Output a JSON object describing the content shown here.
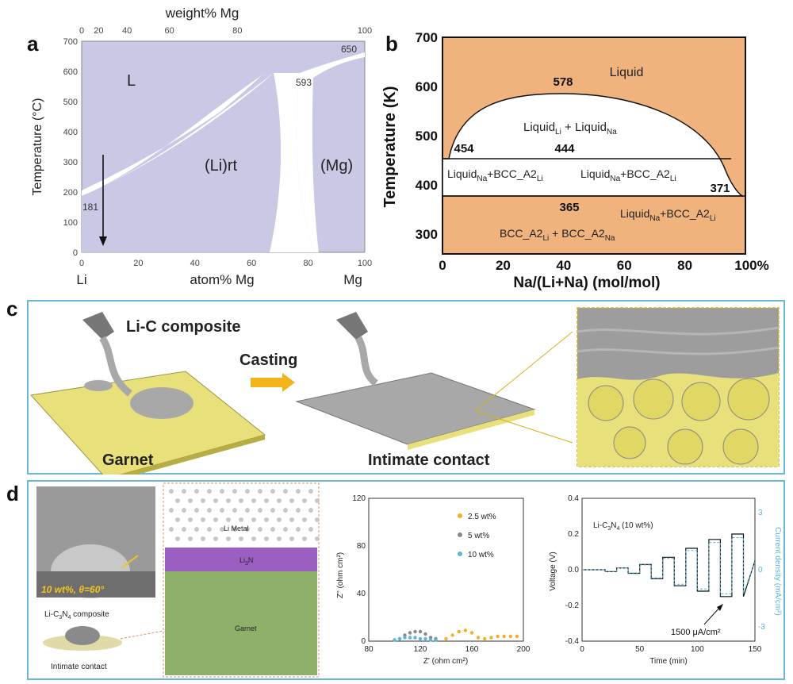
{
  "panel_a": {
    "label": "a",
    "top_axis_title": "weight% Mg",
    "top_ticks": [
      "0",
      "20",
      "40",
      "60",
      "80",
      "100"
    ],
    "y_title": "Temperature (°C)",
    "y_ticks": [
      "0",
      "100",
      "200",
      "300",
      "400",
      "500",
      "600",
      "700"
    ],
    "x_ticks": [
      "0",
      "20",
      "40",
      "60",
      "80",
      "100"
    ],
    "x_left": "Li",
    "x_title": "atom% Mg",
    "x_right": "Mg",
    "region_L": "L",
    "region_lirt": "(Li)rt",
    "region_mg": "(Mg)",
    "t_650": "650",
    "t_593": "593",
    "t_181": "181",
    "colors": {
      "liquid": "#c9c9e6",
      "solid": "#ffffff"
    }
  },
  "panel_b": {
    "label": "b",
    "y_title": "Temperature (K)",
    "y_ticks": [
      "700",
      "600",
      "500",
      "400",
      "300"
    ],
    "x_ticks": [
      "0",
      "20",
      "40",
      "60",
      "80",
      "100%"
    ],
    "x_title": "Na/(Li+Na) (mol/mol)",
    "liquid": "Liquid",
    "t_578": "578",
    "t_454": "454",
    "t_444": "444",
    "t_371": "371",
    "t_365": "365",
    "miscibility_main": "Liquid",
    "miscibility_sub1": "Li",
    "miscibility_plus": " + Liquid",
    "miscibility_sub2": "Na",
    "left_region_main": "Liquid",
    "left_region_sub1": "Na",
    "left_region_plus": "+BCC_A2",
    "left_region_sub2": "Li",
    "right_region_main": "Liquid",
    "right_region_sub1": "Na",
    "right_region_plus": "+BCC_A2",
    "right_region_sub2": "Li",
    "lower_right_main": "Liquid",
    "lower_right_sub1": "Na",
    "lower_right_plus": "+BCC_A2",
    "lower_right_sub2": "Li",
    "bottom_main": "BCC_A2",
    "bottom_sub1": "Li",
    "bottom_plus": " + BCC_A2",
    "bottom_sub2": "Na",
    "colors": {
      "fill": "#f0b37e",
      "white": "#ffffff"
    }
  },
  "panel_c": {
    "label": "c",
    "composite": "Li-C composite",
    "casting": "Casting",
    "garnet": "Garnet",
    "intimate": "Intimate contact",
    "colors": {
      "garnet": "#e8e07a",
      "metal": "#a9a9a9",
      "arrow": "#f2b31c",
      "frame": "#6bb8d6"
    }
  },
  "panel_d": {
    "label": "d",
    "drop_caption": "10 wt%, θ=60°",
    "composite_main": "Li-C",
    "composite_sub": "3",
    "composite_n": "N",
    "composite_sub2": "4",
    "composite_rest": " composite",
    "intimate": "Intimate contact",
    "li_metal": "Li Metal",
    "li3n_main": "Li",
    "li3n_sub": "3",
    "li3n_rest": "N",
    "garnet": "Garnet",
    "eis": {
      "y_title": "Z'' (ohm cm²)",
      "x_title": "Z' (ohm cm²)",
      "y_ticks": [
        "0",
        "40",
        "80",
        "120"
      ],
      "x_ticks": [
        "80",
        "120",
        "160",
        "200"
      ],
      "legend": [
        "2.5 wt%",
        "5   wt%",
        "10  wt%"
      ],
      "colors": [
        "#f0b020",
        "#888888",
        "#5ab6d6"
      ]
    },
    "cycling": {
      "title": "Li-C",
      "title_sub": "3",
      "title_n": "N",
      "title_sub2": "4",
      "title_rest": " (10 wt%)",
      "y_title": "Voltage (V)",
      "y2_title": "Current density (mA/cm²)",
      "y_ticks": [
        "0.4",
        "0.2",
        "0.0",
        "-0.2",
        "-0.4"
      ],
      "y2_ticks": [
        "3",
        "0",
        "-3"
      ],
      "x_ticks": [
        "0",
        "50",
        "100",
        "150"
      ],
      "x_title": "Time (min)",
      "annotation": "1500  μA/cm²"
    }
  },
  "chart_data": [
    {
      "type": "line",
      "panel": "a",
      "xlabel": "atom% Mg",
      "ylabel": "Temperature (°C)",
      "xlim": [
        0,
        100
      ],
      "ylim": [
        0,
        700
      ],
      "points": [
        {
          "x": 0,
          "y": 181,
          "label": "181"
        },
        {
          "x": 75,
          "y": 593,
          "label": "593"
        },
        {
          "x": 100,
          "y": 650,
          "label": "650"
        }
      ]
    },
    {
      "type": "line",
      "panel": "b",
      "xlabel": "Na/(Li+Na) (mol/mol)",
      "ylabel": "Temperature (K)",
      "xlim": [
        0,
        100
      ],
      "ylim": [
        260,
        700
      ],
      "points": [
        {
          "x": 35,
          "y": 578,
          "label": "578"
        },
        {
          "x": 2,
          "y": 454,
          "label": "454"
        },
        {
          "x": 35,
          "y": 444,
          "label": "444"
        },
        {
          "x": 97,
          "y": 371,
          "label": "371"
        },
        {
          "x": 40,
          "y": 365,
          "label": "365"
        }
      ]
    },
    {
      "type": "scatter",
      "panel": "d-eis",
      "xlabel": "Z' (ohm cm²)",
      "ylabel": "Z'' (ohm cm²)",
      "xlim": [
        80,
        200
      ],
      "ylim": [
        0,
        120
      ],
      "series": [
        {
          "name": "2.5 wt%",
          "x": [
            140,
            145,
            150,
            155,
            160,
            165,
            170,
            175,
            180,
            185,
            190,
            195
          ],
          "y": [
            2,
            5,
            8,
            9,
            7,
            3,
            2,
            3,
            4,
            4,
            4,
            4
          ]
        },
        {
          "name": "5   wt%",
          "x": [
            104,
            108,
            112,
            116,
            120,
            124,
            128,
            132
          ],
          "y": [
            2,
            5,
            7,
            8,
            8,
            6,
            3,
            2
          ]
        },
        {
          "name": "10  wt%",
          "x": [
            100,
            104,
            108,
            112,
            116,
            120,
            124,
            128,
            132
          ],
          "y": [
            1,
            2,
            3,
            3,
            3,
            2,
            2,
            1,
            1
          ]
        }
      ]
    },
    {
      "type": "line",
      "panel": "d-cycling",
      "xlabel": "Time (min)",
      "ylabel": "Voltage (V)",
      "xlim": [
        0,
        150
      ],
      "ylim": [
        -0.4,
        0.4
      ],
      "series": [
        {
          "name": "",
          "x": [
            0,
            20,
            20,
            30,
            30,
            40,
            40,
            50,
            50,
            60,
            60,
            70,
            70,
            80,
            80,
            90,
            90,
            100,
            100,
            110,
            110,
            120,
            120,
            130,
            130,
            140,
            140,
            150
          ],
          "y": [
            0.0,
            0.0,
            -0.01,
            -0.01,
            0.01,
            0.01,
            -0.02,
            -0.02,
            0.03,
            0.03,
            -0.05,
            -0.05,
            0.07,
            0.07,
            -0.09,
            -0.09,
            0.12,
            0.12,
            -0.12,
            -0.12,
            0.17,
            0.17,
            -0.15,
            -0.15,
            0.2,
            0.2,
            -0.15,
            0.05
          ]
        }
      ]
    }
  ]
}
